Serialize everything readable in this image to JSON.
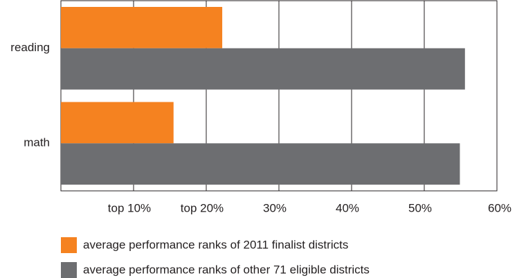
{
  "chart_data": {
    "type": "hbar",
    "categories": [
      "reading",
      "math"
    ],
    "series": [
      {
        "name": "average performance ranks of 2011 finalist districts",
        "color": "#f58220",
        "values": [
          22.2,
          15.5
        ]
      },
      {
        "name": "average performance ranks of other 71 eligible districts",
        "color": "#6d6e71",
        "values": [
          55.6,
          54.9
        ]
      }
    ],
    "xlim": [
      0,
      60
    ],
    "xticks": [
      {
        "value": 10,
        "label": "top 10%"
      },
      {
        "value": 20,
        "label": "top 20%"
      },
      {
        "value": 30,
        "label": "30%"
      },
      {
        "value": 40,
        "label": "40%"
      },
      {
        "value": 50,
        "label": "50%"
      },
      {
        "value": 60,
        "label": "60%"
      }
    ],
    "grid": true,
    "legend": "bottom"
  }
}
